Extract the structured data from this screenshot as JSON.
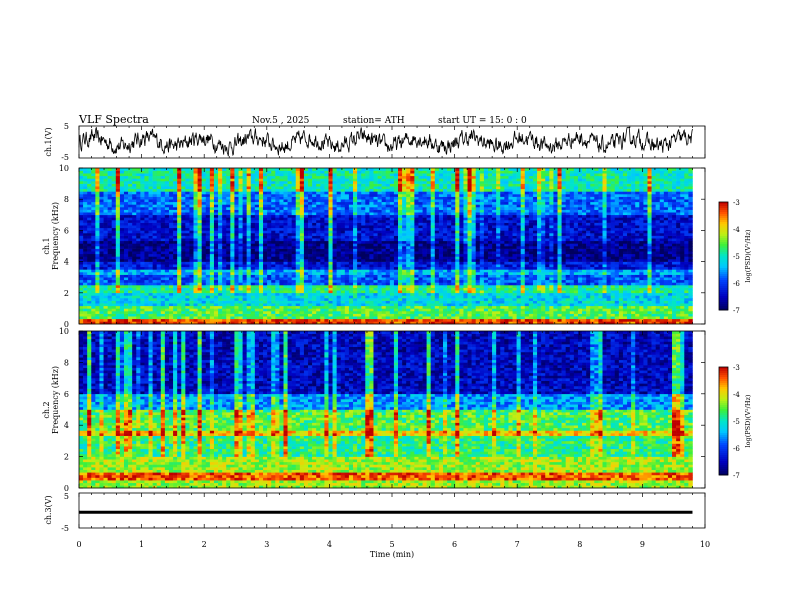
{
  "header": {
    "title": "VLF  Spectra",
    "date": "Nov.5  , 2025",
    "station": "station= ATH",
    "start_ut": "start  UT  =    15: 0   : 0"
  },
  "chart_data": [
    {
      "id": "ch1-waveform",
      "type": "line",
      "ylabel": "ch.1(V)",
      "ylim": [
        -5,
        5
      ],
      "y_ticks": [
        "5",
        "-5"
      ],
      "xlim": [
        0,
        10
      ],
      "data_end_min": 9.8,
      "description_series": "noisy waveform oscillating roughly between -4 and 4 V"
    },
    {
      "id": "ch1-spectrogram",
      "type": "heatmap",
      "ylabel_channel": "ch.1",
      "ylabel": "Frequency  (kHz)",
      "ylim": [
        0,
        10
      ],
      "y_ticks": [
        "0",
        "2",
        "4",
        "6",
        "8",
        "10"
      ],
      "xlim": [
        0,
        10
      ],
      "data_end_min": 9.8,
      "colorbar": {
        "label": "log(PSD)(V²/Hz)",
        "range": [
          -7,
          -3
        ],
        "ticks": [
          "-3",
          "-4",
          "-5",
          "-6",
          "-7"
        ]
      },
      "bands": [
        {
          "f_from": 0,
          "f_to": 0.4,
          "level": -3.3
        },
        {
          "f_from": 0.4,
          "f_to": 1.2,
          "level": -4.6
        },
        {
          "f_from": 1.2,
          "f_to": 2.0,
          "level": -5.2
        },
        {
          "f_from": 2.0,
          "f_to": 2.5,
          "level": -4.9
        },
        {
          "f_from": 2.5,
          "f_to": 3.2,
          "level": -5.9
        },
        {
          "f_from": 3.2,
          "f_to": 3.5,
          "level": -5.5
        },
        {
          "f_from": 3.5,
          "f_to": 4.0,
          "level": -6.3
        },
        {
          "f_from": 4.0,
          "f_to": 5.3,
          "level": -6.8
        },
        {
          "f_from": 5.3,
          "f_to": 7.0,
          "level": -6.4
        },
        {
          "f_from": 7.0,
          "f_to": 8.5,
          "level": -5.8
        },
        {
          "f_from": 8.5,
          "f_to": 10,
          "level": -5.0
        }
      ]
    },
    {
      "id": "ch2-spectrogram",
      "type": "heatmap",
      "ylabel_channel": "ch.2",
      "ylabel": "Frequency  (kHz)",
      "ylim": [
        0,
        10
      ],
      "y_ticks": [
        "0",
        "2",
        "4",
        "6",
        "8",
        "10"
      ],
      "xlim": [
        0,
        10
      ],
      "data_end_min": 9.8,
      "colorbar": {
        "label": "log(PSD)(V²/Hz)",
        "range": [
          -7,
          -3
        ],
        "ticks": [
          "-3",
          "-4",
          "-5",
          "-6",
          "-7"
        ]
      },
      "bands": [
        {
          "f_from": 0,
          "f_to": 0.5,
          "level": -4.3
        },
        {
          "f_from": 0.5,
          "f_to": 1.0,
          "level": -3.4
        },
        {
          "f_from": 1.0,
          "f_to": 2.0,
          "level": -4.3
        },
        {
          "f_from": 2.0,
          "f_to": 3.3,
          "level": -4.8
        },
        {
          "f_from": 3.3,
          "f_to": 3.7,
          "level": -3.9
        },
        {
          "f_from": 3.7,
          "f_to": 5.0,
          "level": -4.6
        },
        {
          "f_from": 5.0,
          "f_to": 6.0,
          "level": -5.6
        },
        {
          "f_from": 6.0,
          "f_to": 10,
          "level": -6.5
        }
      ]
    },
    {
      "id": "ch3-waveform",
      "type": "line",
      "ylabel": "ch.3(V)",
      "ylim": [
        -5,
        5
      ],
      "y_ticks": [
        "5",
        "-5"
      ],
      "xlim": [
        0,
        10
      ],
      "data_end_min": 9.8,
      "constant_value": -0.5,
      "xlabel": "Time  (min)",
      "x_ticks": [
        "0",
        "1",
        "2",
        "3",
        "4",
        "5",
        "6",
        "7",
        "8",
        "9",
        "10"
      ]
    }
  ]
}
